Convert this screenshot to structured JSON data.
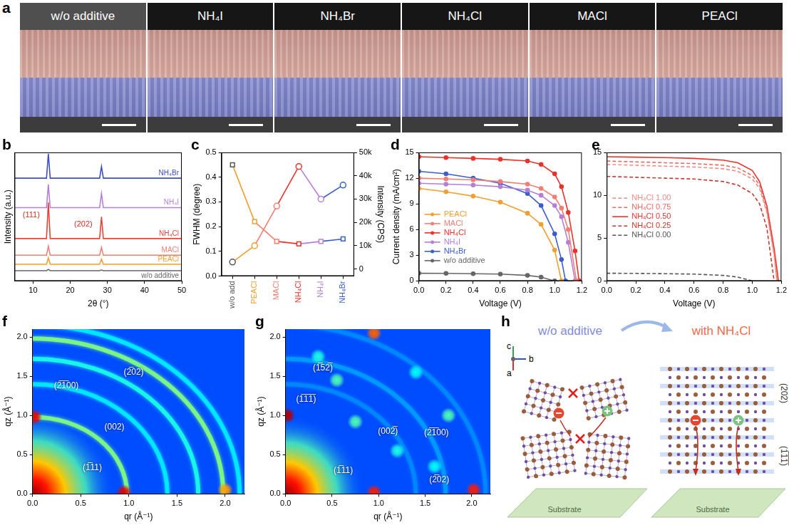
{
  "panel_a": {
    "panel": "a",
    "columns": [
      "w/o additive",
      "NH₄I",
      "NH₄Br",
      "NH₄Cl",
      "MACl",
      "PEACl"
    ]
  },
  "chart_data": [
    {
      "panel": "b",
      "type": "line",
      "x_label": "2θ (°)",
      "y_label": "Intensity (a.u.)",
      "x": [
        5,
        13.6,
        14.1,
        14.6,
        20,
        27.9,
        28.4,
        28.9,
        50
      ],
      "xlim": [
        5,
        50
      ],
      "xticks": [
        10,
        20,
        30,
        40,
        50
      ],
      "ylim": [
        0,
        100
      ],
      "tick_labels": "x",
      "series": [
        {
          "name": "NH₄Br",
          "color": "#3b4fc4",
          "values": [
            80,
            80,
            99,
            80,
            80,
            80,
            89,
            80,
            80
          ]
        },
        {
          "name": "NH₄I",
          "color": "#b57fd6",
          "values": [
            57,
            57,
            75,
            57,
            57,
            57,
            68,
            57,
            57
          ]
        },
        {
          "name": "NH₄Cl",
          "color": "#e8443a",
          "values": [
            33,
            33,
            61,
            33,
            33,
            33,
            50,
            33,
            33
          ]
        },
        {
          "name": "MACl",
          "color": "#ef7f74",
          "values": [
            20,
            20,
            27,
            20,
            20,
            20,
            26,
            20,
            20
          ]
        },
        {
          "name": "PEACl",
          "color": "#f0a030",
          "values": [
            13,
            13,
            18,
            13,
            13,
            13,
            17,
            13,
            13
          ]
        },
        {
          "name": "w/o additive",
          "color": "#666666",
          "values": [
            8,
            8,
            9,
            8,
            8,
            8,
            8.5,
            8,
            8
          ]
        }
      ],
      "annotations": [
        {
          "text": "(111)",
          "x": 9.5,
          "y": 51
        },
        {
          "text": "(202)",
          "x": 23.5,
          "y": 44
        }
      ]
    },
    {
      "panel": "c",
      "type": "line",
      "y_label": "FWHM (degree)",
      "y2_label": "Intensity (CPS)",
      "categories": [
        "w/o add",
        "PEACl",
        "MACl",
        "NH₄Cl",
        "NH₄I",
        "NH₄Br"
      ],
      "colors": [
        "#555555",
        "#f0a030",
        "#ef7f74",
        "#e8332a",
        "#b57fd6",
        "#3a5fcd"
      ],
      "ylim": [
        0,
        0.5
      ],
      "yticks": [
        {
          "value": 0,
          "label": "0.0"
        },
        0.1,
        0.2,
        0.3,
        0.4,
        0.5
      ],
      "y2lim": [
        -3000,
        50000
      ],
      "y2ticks": [
        0,
        {
          "value": 10000,
          "label": "10k"
        },
        {
          "value": 20000,
          "label": "20k"
        },
        {
          "value": 30000,
          "label": "30k"
        },
        {
          "value": 40000,
          "label": "40k"
        },
        {
          "value": 50000,
          "label": "50k"
        }
      ],
      "series": [
        {
          "marker": "square",
          "values": [
            0.45,
            0.22,
            0.14,
            0.13,
            0.14,
            0.15
          ]
        },
        {
          "marker": "circle",
          "axis": "y2",
          "values": [
            3000,
            10000,
            27000,
            44000,
            30000,
            36000
          ]
        }
      ]
    },
    {
      "panel": "d",
      "type": "line",
      "x_label": "Voltage (V)",
      "y_label": "Current density (mA/cm²)",
      "xlim": [
        0,
        1.2
      ],
      "xticks": [
        {
          "value": 0,
          "label": "0.0"
        },
        0.2,
        0.4,
        0.6,
        0.8,
        {
          "value": 1,
          "label": "1.0"
        },
        1.2
      ],
      "ylim": [
        0,
        15
      ],
      "yticks": [
        0,
        3,
        6,
        9,
        12,
        15
      ],
      "legend": "lower left",
      "marker": "circle",
      "series": [
        {
          "name": "PEACl",
          "color": "#f0a030",
          "x": [
            0,
            0.2,
            0.4,
            0.6,
            0.8,
            0.9,
            1.0,
            1.05
          ],
          "values": [
            10.8,
            10.4,
            9.9,
            9.2,
            7.9,
            6.6,
            3.6,
            0
          ]
        },
        {
          "name": "MACl",
          "color": "#ef7f74",
          "x": [
            0,
            0.2,
            0.4,
            0.6,
            0.8,
            0.9,
            1.0,
            1.05,
            1.1,
            1.16
          ],
          "values": [
            12.0,
            11.9,
            11.8,
            11.6,
            11.3,
            10.8,
            9.8,
            8.5,
            6.0,
            0
          ]
        },
        {
          "name": "NH₄Cl",
          "color": "#e8332a",
          "x": [
            0,
            0.2,
            0.4,
            0.6,
            0.8,
            0.9,
            1.0,
            1.05,
            1.1,
            1.15,
            1.18
          ],
          "values": [
            14.5,
            14.4,
            14.3,
            14.2,
            14.0,
            13.6,
            12.5,
            11.0,
            8.0,
            3.5,
            0
          ]
        },
        {
          "name": "NH₄I",
          "color": "#b57fd6",
          "x": [
            0,
            0.2,
            0.4,
            0.6,
            0.8,
            0.9,
            1.0,
            1.05,
            1.1,
            1.15
          ],
          "values": [
            11.4,
            11.3,
            11.2,
            11.0,
            10.6,
            10.0,
            8.8,
            7.5,
            4.5,
            0
          ]
        },
        {
          "name": "NH₄Br",
          "color": "#3a5fcd",
          "x": [
            0,
            0.2,
            0.4,
            0.6,
            0.8,
            0.9,
            1.0,
            1.05,
            1.08
          ],
          "values": [
            12.8,
            12.5,
            12.0,
            11.4,
            10.2,
            8.8,
            5.5,
            2.5,
            0
          ]
        },
        {
          "name": "w/o additive",
          "color": "#666666",
          "x": [
            0,
            0.2,
            0.4,
            0.6,
            0.8,
            0.9,
            1.0
          ],
          "values": [
            0.9,
            0.88,
            0.85,
            0.8,
            0.65,
            0.45,
            0
          ]
        }
      ]
    },
    {
      "panel": "e",
      "type": "line",
      "x_label": "Voltage (V)",
      "xlim": [
        0,
        1.2
      ],
      "xticks": [
        {
          "value": 0,
          "label": "0.0"
        },
        0.2,
        0.4,
        0.6,
        0.8,
        {
          "value": 1,
          "label": "1.0"
        },
        1.2
      ],
      "ylim": [
        0,
        15
      ],
      "yticks": [
        0,
        5,
        10,
        15
      ],
      "legend": "center left",
      "series": [
        {
          "name": "NH₄Cl 1.00",
          "color": "#f08c84",
          "line_style": "dashed",
          "x": [
            0,
            0.2,
            0.4,
            0.6,
            0.8,
            0.9,
            1.0,
            1.05,
            1.1,
            1.15,
            1.17
          ],
          "values": [
            13.6,
            13.5,
            13.4,
            13.3,
            13.1,
            12.8,
            11.9,
            10.8,
            8.0,
            3.0,
            0
          ]
        },
        {
          "name": "NH₄Cl 0.75",
          "color": "#ec6a60",
          "line_style": "dashed",
          "x": [
            0,
            0.2,
            0.4,
            0.6,
            0.8,
            0.9,
            1.0,
            1.05,
            1.1,
            1.15,
            1.17
          ],
          "values": [
            14.0,
            13.9,
            13.8,
            13.7,
            13.5,
            13.2,
            12.3,
            11.2,
            8.3,
            3.3,
            0
          ]
        },
        {
          "name": "NH₄Cl 0.50",
          "color": "#e8332a",
          "line_style": "solid",
          "x": [
            0,
            0.2,
            0.4,
            0.6,
            0.8,
            0.9,
            1.0,
            1.05,
            1.1,
            1.15,
            1.18
          ],
          "values": [
            14.5,
            14.45,
            14.4,
            14.3,
            14.1,
            13.8,
            12.9,
            11.6,
            8.8,
            3.8,
            0
          ]
        },
        {
          "name": "NH₄Cl 0.25",
          "color": "#c8392e",
          "line_style": "dashed",
          "x": [
            0,
            0.2,
            0.4,
            0.6,
            0.8,
            0.9,
            1.0,
            1.05,
            1.1,
            1.15
          ],
          "values": [
            12.2,
            12.1,
            12.0,
            11.9,
            11.6,
            11.2,
            10.2,
            9.0,
            6.2,
            0
          ]
        },
        {
          "name": "NH₄Cl 0.00",
          "color": "#555555",
          "line_style": "dashed",
          "x": [
            0,
            0.2,
            0.4,
            0.6,
            0.8,
            0.9,
            1.0
          ],
          "values": [
            0.9,
            0.88,
            0.85,
            0.8,
            0.65,
            0.45,
            0
          ]
        }
      ]
    },
    {
      "panel": "f",
      "type": "heatmap",
      "x_label": "qr (Å⁻¹)",
      "y_label": "qz (Å⁻¹)",
      "xlim": [
        0,
        2.2
      ],
      "xticks": [
        {
          "value": 0,
          "label": "0.0"
        },
        0.5,
        {
          "value": 1,
          "label": "1.0"
        },
        1.5,
        {
          "value": 2,
          "label": "2.0"
        }
      ],
      "ylim": [
        0,
        2.1
      ],
      "yticks": [
        {
          "value": 0,
          "label": "0.0"
        },
        0.5,
        {
          "value": 1,
          "label": "1.0"
        },
        1.5,
        {
          "value": 2,
          "label": "2.0"
        }
      ],
      "rings": [
        {
          "q": 0.98,
          "intensity": 0.5
        },
        {
          "q": 1.4,
          "intensity": 0.36
        },
        {
          "q": 1.72,
          "intensity": 0.4
        },
        {
          "q": 1.98,
          "intensity": 0.5
        },
        {
          "q": 2.15,
          "intensity": 0.36
        }
      ],
      "spots": [
        {
          "qr": 0.95,
          "qz": 0.02,
          "intensity": 0.9
        },
        {
          "qr": 0.02,
          "qz": 0.98,
          "intensity": 0.9
        },
        {
          "qr": 2.0,
          "qz": 0.05,
          "intensity": 0.72
        }
      ],
      "annotations": [
        {
          "text": "(2̅1̅00)",
          "x": 0.35,
          "y": 1.38
        },
        {
          "text": "(2̅02)",
          "x": 1.05,
          "y": 1.55
        },
        {
          "text": "(002)",
          "x": 0.85,
          "y": 0.85
        },
        {
          "text": "(1̅11)",
          "x": 0.62,
          "y": 0.33
        }
      ]
    },
    {
      "panel": "g",
      "type": "heatmap",
      "x_label": "qr (Å⁻¹)",
      "y_label": "qz (Å⁻¹)",
      "xlim": [
        0,
        2.2
      ],
      "xticks": [
        {
          "value": 0,
          "label": "0.0"
        },
        0.5,
        {
          "value": 1,
          "label": "1.0"
        },
        1.5,
        {
          "value": 2,
          "label": "2.0"
        }
      ],
      "ylim": [
        0,
        2.1
      ],
      "yticks": [
        {
          "value": 0,
          "label": "0.0"
        },
        0.5,
        {
          "value": 1,
          "label": "1.0"
        },
        1.5,
        {
          "value": 2,
          "label": "2.0"
        }
      ],
      "rings": [
        {
          "q": 1.4,
          "intensity": 0.26
        },
        {
          "q": 1.72,
          "intensity": 0.28
        },
        {
          "q": 2.15,
          "intensity": 0.26
        }
      ],
      "spots": [
        {
          "qr": 0.02,
          "qz": 1.0,
          "intensity": 0.95
        },
        {
          "qr": 0.95,
          "qz": 0.02,
          "intensity": 0.85
        },
        {
          "qr": 2.02,
          "qz": 0.05,
          "intensity": 0.85
        },
        {
          "qr": 0.95,
          "qz": 2.05,
          "intensity": 0.78
        },
        {
          "qr": 0.75,
          "qz": 0.92,
          "intensity": 0.45
        },
        {
          "qr": 0.55,
          "qz": 1.45,
          "intensity": 0.45
        },
        {
          "qr": 1.75,
          "qz": 1.0,
          "intensity": 0.45
        },
        {
          "qr": 0.35,
          "qz": 1.75,
          "intensity": 0.4
        },
        {
          "qr": 1.4,
          "qz": 1.55,
          "intensity": 0.38
        },
        {
          "qr": 1.2,
          "qz": 0.55,
          "intensity": 0.4
        },
        {
          "qr": 1.6,
          "qz": 0.35,
          "intensity": 0.38
        }
      ],
      "annotations": [
        {
          "text": "(1̅52̅)",
          "x": 0.4,
          "y": 1.6
        },
        {
          "text": "(1̅1̅1̅)",
          "x": 0.22,
          "y": 1.2
        },
        {
          "text": "(002̅)",
          "x": 1.1,
          "y": 0.8
        },
        {
          "text": "(2̅1̅00)",
          "x": 1.62,
          "y": 0.78
        },
        {
          "text": "(1̅11)",
          "x": 0.62,
          "y": 0.3
        },
        {
          "text": "(2̅02)",
          "x": 1.65,
          "y": 0.18
        }
      ]
    }
  ],
  "panel_h": {
    "panel": "h",
    "left": {
      "title": "w/o additive",
      "substrate": "Substrate"
    },
    "right": {
      "title": "with NH₄Cl",
      "substrate": "Substrate",
      "planes": [
        "(202)",
        "(1̅1̅1̅)"
      ]
    },
    "axes": [
      "c",
      "b",
      "a"
    ]
  }
}
